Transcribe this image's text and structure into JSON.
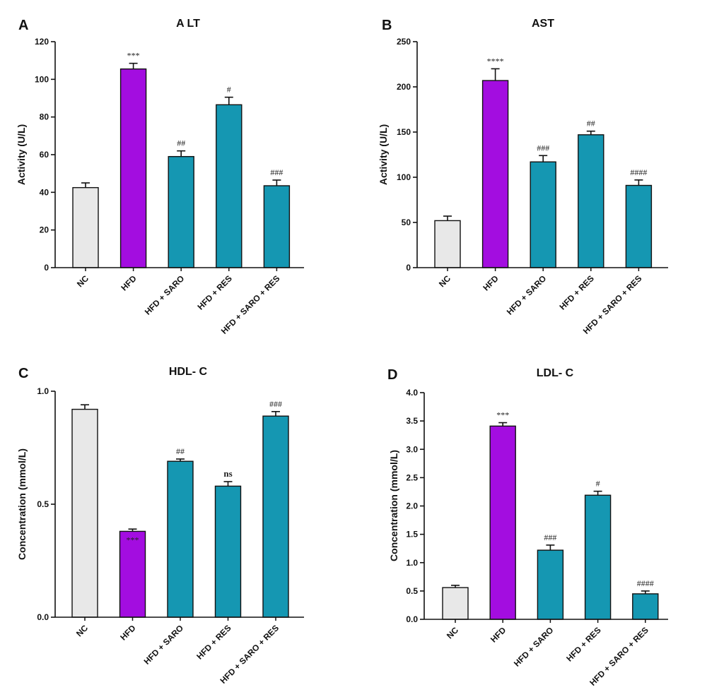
{
  "chart_data": [
    {
      "panel": "A",
      "type": "bar",
      "title": "A LT",
      "ylabel": "Activity (U/L)",
      "xlabel": "",
      "ylim": [
        0,
        120
      ],
      "yticks": [
        0,
        20,
        40,
        60,
        80,
        100,
        120
      ],
      "ytick_labels": [
        "0",
        "20",
        "40",
        "60",
        "80",
        "100",
        "120"
      ],
      "categories": [
        "NC",
        "HFD",
        "HFD + SARO",
        "HFD + RES",
        "HFD + SARO + RES"
      ],
      "values": [
        42.5,
        105.5,
        59,
        86.5,
        43.5
      ],
      "errors": [
        2.5,
        3,
        3,
        4,
        3
      ],
      "colors": [
        "#e8e8e8",
        "#a30de0",
        "#1597b2",
        "#1597b2",
        "#1597b2"
      ],
      "annotations": [
        "",
        "***",
        "##",
        "#",
        "###"
      ],
      "grid": false
    },
    {
      "panel": "B",
      "type": "bar",
      "title": "AST",
      "ylabel": "Activity (U/L)",
      "xlabel": "",
      "ylim": [
        0,
        250
      ],
      "yticks": [
        0,
        50,
        100,
        150,
        200,
        250
      ],
      "ytick_labels": [
        "0",
        "50",
        "100",
        "150",
        "200",
        "250"
      ],
      "categories": [
        "NC",
        "HFD",
        "HFD + SARO",
        "HFD + RES",
        "HFD + SARO + RES"
      ],
      "values": [
        52,
        207,
        117,
        147,
        91
      ],
      "errors": [
        5,
        13,
        7,
        4,
        6
      ],
      "colors": [
        "#e8e8e8",
        "#a30de0",
        "#1597b2",
        "#1597b2",
        "#1597b2"
      ],
      "annotations": [
        "",
        "****",
        "###",
        "##",
        "####"
      ],
      "grid": false
    },
    {
      "panel": "C",
      "type": "bar",
      "title": "HDL- C",
      "ylabel": "Concentration (mmol/L)",
      "xlabel": "",
      "ylim": [
        0,
        1.0
      ],
      "yticks": [
        0,
        0.5,
        1.0
      ],
      "ytick_labels": [
        "0.0",
        "0.5",
        "1.0"
      ],
      "categories": [
        "NC",
        "HFD",
        "HFD + SARO",
        "HFD + RES",
        "HFD + SARO + RES"
      ],
      "values": [
        0.92,
        0.38,
        0.69,
        0.58,
        0.89
      ],
      "errors": [
        0.02,
        0.01,
        0.01,
        0.02,
        0.02
      ],
      "colors": [
        "#e8e8e8",
        "#a30de0",
        "#1597b2",
        "#1597b2",
        "#1597b2"
      ],
      "annotations": [
        "",
        "***",
        "##",
        "ns",
        "###"
      ],
      "annotation_positions": [
        "",
        "below",
        "above",
        "above",
        "above"
      ],
      "grid": false
    },
    {
      "panel": "D",
      "type": "bar",
      "title": "LDL- C",
      "ylabel": "Concentration (mmol/L)",
      "xlabel": "",
      "ylim": [
        0,
        4.0
      ],
      "yticks": [
        0,
        0.5,
        1.0,
        1.5,
        2.0,
        2.5,
        3.0,
        3.5,
        4.0
      ],
      "ytick_labels": [
        "0.0",
        "0.5",
        "1.0",
        "1.5",
        "2.0",
        "2.5",
        "3.0",
        "3.5",
        "4.0"
      ],
      "categories": [
        "NC",
        "HFD",
        "HFD + SARO",
        "HFD + RES",
        "HFD + SARO + RES"
      ],
      "values": [
        0.56,
        3.41,
        1.22,
        2.19,
        0.45
      ],
      "errors": [
        0.04,
        0.06,
        0.09,
        0.07,
        0.05
      ],
      "colors": [
        "#e8e8e8",
        "#a30de0",
        "#1597b2",
        "#1597b2",
        "#1597b2"
      ],
      "annotations": [
        "",
        "***",
        "###",
        "#",
        "####"
      ],
      "grid": false
    }
  ]
}
